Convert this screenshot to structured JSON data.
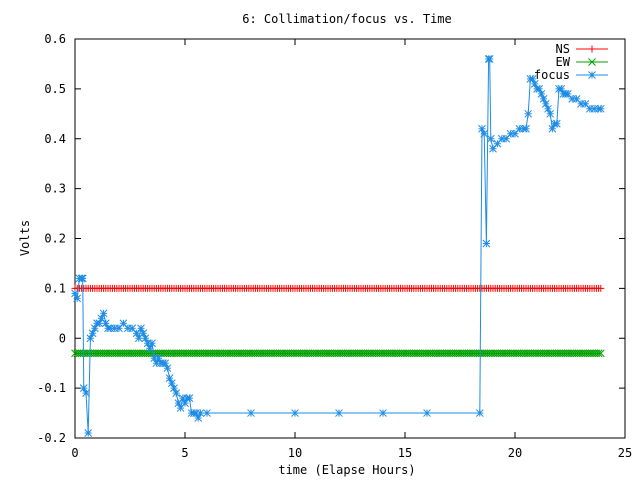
{
  "chart_data": {
    "type": "line",
    "title": "6: Collimation/focus vs. Time",
    "xlabel": "time (Elapse Hours)",
    "ylabel": "Volts",
    "xlim": [
      0,
      25
    ],
    "ylim": [
      -0.2,
      0.6
    ],
    "grid": false,
    "legend_position": "top-right",
    "x_ticks": [
      0,
      5,
      10,
      15,
      20,
      25
    ],
    "x_tick_labels": [
      "0",
      "5",
      "10",
      "15",
      "20",
      "25"
    ],
    "y_ticks": [
      -0.2,
      -0.1,
      0,
      0.1,
      0.2,
      0.3,
      0.4,
      0.5,
      0.6
    ],
    "y_tick_labels": [
      "-0.2",
      "-0.1",
      "0",
      "0.1",
      "0.2",
      "0.3",
      "0.4",
      "0.5",
      "0.6"
    ],
    "series": [
      {
        "name": "NS",
        "color": "#ff0000",
        "marker": "plus",
        "constant": 0.1,
        "x_range": [
          0,
          23.9
        ],
        "sample_step": 0.1
      },
      {
        "name": "EW",
        "color": "#00a000",
        "marker": "cross",
        "constant": -0.03,
        "x_range": [
          0,
          23.9
        ],
        "sample_step": 0.1
      },
      {
        "name": "focus",
        "color": "#1e8ce6",
        "marker": "star",
        "points": [
          [
            0.0,
            0.09
          ],
          [
            0.1,
            0.08
          ],
          [
            0.2,
            0.12
          ],
          [
            0.3,
            0.12
          ],
          [
            0.35,
            0.12
          ],
          [
            0.4,
            -0.1
          ],
          [
            0.5,
            -0.11
          ],
          [
            0.6,
            -0.19
          ],
          [
            0.7,
            0.0
          ],
          [
            0.8,
            0.01
          ],
          [
            0.9,
            0.02
          ],
          [
            1.0,
            0.03
          ],
          [
            1.1,
            0.03
          ],
          [
            1.2,
            0.04
          ],
          [
            1.3,
            0.05
          ],
          [
            1.4,
            0.03
          ],
          [
            1.5,
            0.02
          ],
          [
            1.6,
            0.02
          ],
          [
            1.8,
            0.02
          ],
          [
            2.0,
            0.02
          ],
          [
            2.2,
            0.03
          ],
          [
            2.4,
            0.02
          ],
          [
            2.6,
            0.02
          ],
          [
            2.8,
            0.01
          ],
          [
            2.9,
            0.0
          ],
          [
            3.0,
            0.02
          ],
          [
            3.1,
            0.01
          ],
          [
            3.2,
            0.0
          ],
          [
            3.3,
            -0.01
          ],
          [
            3.4,
            -0.02
          ],
          [
            3.5,
            -0.01
          ],
          [
            3.6,
            -0.04
          ],
          [
            3.7,
            -0.05
          ],
          [
            3.8,
            -0.04
          ],
          [
            3.9,
            -0.05
          ],
          [
            4.0,
            -0.05
          ],
          [
            4.1,
            -0.05
          ],
          [
            4.2,
            -0.06
          ],
          [
            4.3,
            -0.08
          ],
          [
            4.4,
            -0.09
          ],
          [
            4.5,
            -0.1
          ],
          [
            4.6,
            -0.11
          ],
          [
            4.7,
            -0.13
          ],
          [
            4.8,
            -0.14
          ],
          [
            4.9,
            -0.12
          ],
          [
            5.0,
            -0.13
          ],
          [
            5.1,
            -0.12
          ],
          [
            5.2,
            -0.12
          ],
          [
            5.3,
            -0.15
          ],
          [
            5.4,
            -0.15
          ],
          [
            5.5,
            -0.15
          ],
          [
            5.6,
            -0.16
          ],
          [
            5.7,
            -0.15
          ],
          [
            6.0,
            -0.15
          ],
          [
            8.0,
            -0.15
          ],
          [
            10.0,
            -0.15
          ],
          [
            12.0,
            -0.15
          ],
          [
            14.0,
            -0.15
          ],
          [
            16.0,
            -0.15
          ],
          [
            18.4,
            -0.15
          ],
          [
            18.5,
            0.42
          ],
          [
            18.6,
            0.41
          ],
          [
            18.7,
            0.19
          ],
          [
            18.8,
            0.56
          ],
          [
            18.85,
            0.56
          ],
          [
            18.9,
            0.4
          ],
          [
            19.0,
            0.38
          ],
          [
            19.2,
            0.39
          ],
          [
            19.4,
            0.4
          ],
          [
            19.6,
            0.4
          ],
          [
            19.8,
            0.41
          ],
          [
            20.0,
            0.41
          ],
          [
            20.2,
            0.42
          ],
          [
            20.4,
            0.42
          ],
          [
            20.5,
            0.42
          ],
          [
            20.6,
            0.45
          ],
          [
            20.7,
            0.52
          ],
          [
            20.8,
            0.52
          ],
          [
            20.9,
            0.51
          ],
          [
            21.0,
            0.5
          ],
          [
            21.1,
            0.5
          ],
          [
            21.2,
            0.49
          ],
          [
            21.3,
            0.48
          ],
          [
            21.4,
            0.47
          ],
          [
            21.5,
            0.46
          ],
          [
            21.6,
            0.45
          ],
          [
            21.7,
            0.42
          ],
          [
            21.8,
            0.43
          ],
          [
            21.9,
            0.43
          ],
          [
            22.0,
            0.5
          ],
          [
            22.1,
            0.5
          ],
          [
            22.2,
            0.49
          ],
          [
            22.3,
            0.49
          ],
          [
            22.4,
            0.49
          ],
          [
            22.6,
            0.48
          ],
          [
            22.8,
            0.48
          ],
          [
            23.0,
            0.47
          ],
          [
            23.2,
            0.47
          ],
          [
            23.4,
            0.46
          ],
          [
            23.6,
            0.46
          ],
          [
            23.8,
            0.46
          ],
          [
            23.9,
            0.46
          ]
        ]
      }
    ]
  }
}
